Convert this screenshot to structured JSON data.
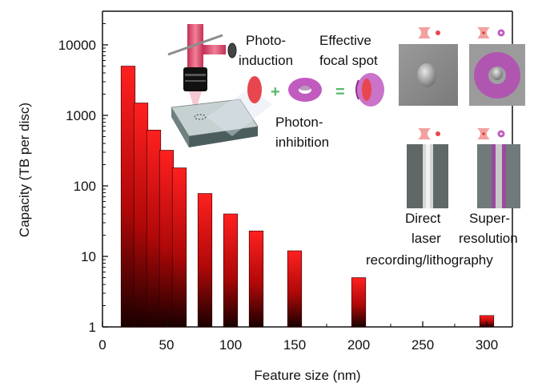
{
  "chart_data": {
    "type": "bar",
    "title": "",
    "xlabel": "Feature size (nm)",
    "ylabel": "Capacity (TB per disc)",
    "y_scale": "log",
    "xlim": [
      0,
      320
    ],
    "ylim": [
      1,
      30000
    ],
    "x_ticks": [
      "0",
      "50",
      "100",
      "150",
      "200",
      "250",
      "300"
    ],
    "y_ticks": [
      "1",
      "10",
      "100",
      "1000",
      "10000"
    ],
    "bar_width": 11,
    "bar_color_top": "#ff2020",
    "bar_color_bottom": "#1a0000",
    "x": [
      20,
      30,
      40,
      50,
      60,
      80,
      100,
      120,
      150,
      200,
      300
    ],
    "values": [
      5000,
      1500,
      620,
      320,
      180,
      78,
      40,
      23,
      12,
      5,
      1.45
    ],
    "grid": false,
    "legend": "none"
  },
  "inset": {
    "labels": {
      "photo_induction": [
        "Photo-",
        "induction"
      ],
      "effective_focal_spot": [
        "Effective",
        "focal spot"
      ],
      "photon_inhibition": [
        "Photon-",
        "inhibition"
      ],
      "direct_laser": [
        "Direct",
        "laser"
      ],
      "super_resolution": [
        "Super-",
        "resolution"
      ],
      "recording_lithography": "recording/lithography",
      "plus": "+",
      "equals": "="
    },
    "colors": {
      "induction": "#e8464f",
      "inhibition": "#c25bc0",
      "operator": "#58b96a",
      "beam": "#e05070"
    }
  }
}
